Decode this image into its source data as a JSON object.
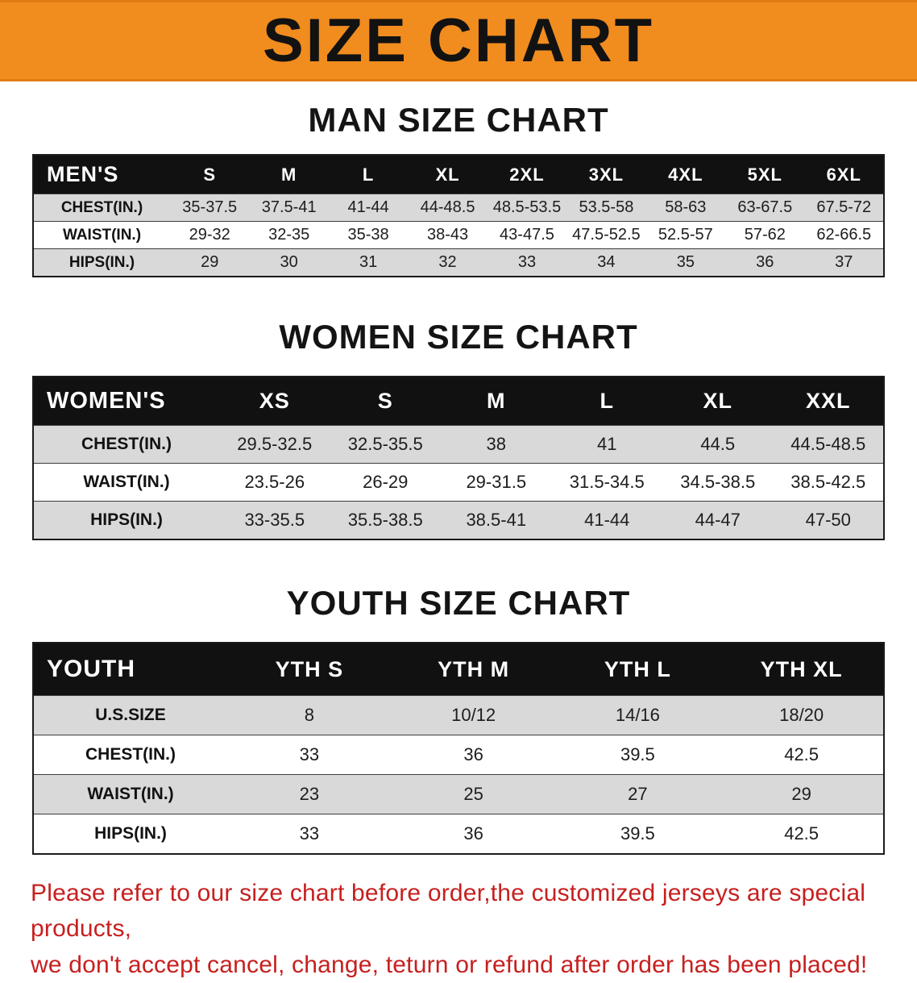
{
  "banner": {
    "title": "SIZE CHART"
  },
  "sections": [
    {
      "id": "men",
      "heading": "MAN SIZE CHART",
      "table": {
        "label": "MEN'S",
        "columns": [
          "S",
          "M",
          "L",
          "XL",
          "2XL",
          "3XL",
          "4XL",
          "5XL",
          "6XL"
        ],
        "rows": [
          {
            "label": "CHEST(IN.)",
            "values": [
              "35-37.5",
              "37.5-41",
              "41-44",
              "44-48.5",
              "48.5-53.5",
              "53.5-58",
              "58-63",
              "63-67.5",
              "67.5-72"
            ]
          },
          {
            "label": "WAIST(IN.)",
            "values": [
              "29-32",
              "32-35",
              "35-38",
              "38-43",
              "43-47.5",
              "47.5-52.5",
              "52.5-57",
              "57-62",
              "62-66.5"
            ]
          },
          {
            "label": "HIPS(IN.)",
            "values": [
              "29",
              "30",
              "31",
              "32",
              "33",
              "34",
              "35",
              "36",
              "37"
            ]
          }
        ]
      }
    },
    {
      "id": "women",
      "heading": "WOMEN SIZE CHART",
      "table": {
        "label": "WOMEN'S",
        "columns": [
          "XS",
          "S",
          "M",
          "L",
          "XL",
          "XXL"
        ],
        "rows": [
          {
            "label": "CHEST(IN.)",
            "values": [
              "29.5-32.5",
              "32.5-35.5",
              "38",
              "41",
              "44.5",
              "44.5-48.5"
            ]
          },
          {
            "label": "WAIST(IN.)",
            "values": [
              "23.5-26",
              "26-29",
              "29-31.5",
              "31.5-34.5",
              "34.5-38.5",
              "38.5-42.5"
            ]
          },
          {
            "label": "HIPS(IN.)",
            "values": [
              "33-35.5",
              "35.5-38.5",
              "38.5-41",
              "41-44",
              "44-47",
              "47-50"
            ]
          }
        ]
      }
    },
    {
      "id": "youth",
      "heading": "YOUTH SIZE CHART",
      "table": {
        "label": "YOUTH",
        "columns": [
          "YTH S",
          "YTH M",
          "YTH L",
          "YTH XL"
        ],
        "rows": [
          {
            "label": "U.S.SIZE",
            "values": [
              "8",
              "10/12",
              "14/16",
              "18/20"
            ]
          },
          {
            "label": "CHEST(IN.)",
            "values": [
              "33",
              "36",
              "39.5",
              "42.5"
            ]
          },
          {
            "label": "WAIST(IN.)",
            "values": [
              "23",
              "25",
              "27",
              "29"
            ]
          },
          {
            "label": "HIPS(IN.)",
            "values": [
              "33",
              "36",
              "39.5",
              "42.5"
            ]
          }
        ]
      }
    }
  ],
  "footer": {
    "lines": [
      "Please refer to our size chart before order,the customized jerseys are special products,",
      "we don't accept cancel, change, teturn or refund after order has been placed!"
    ]
  },
  "colors": {
    "banner_bg": "#f18c1f",
    "table_header_bg": "#111111",
    "shaded_row": "#d9d9d9",
    "notice_text": "#c71f1f"
  }
}
